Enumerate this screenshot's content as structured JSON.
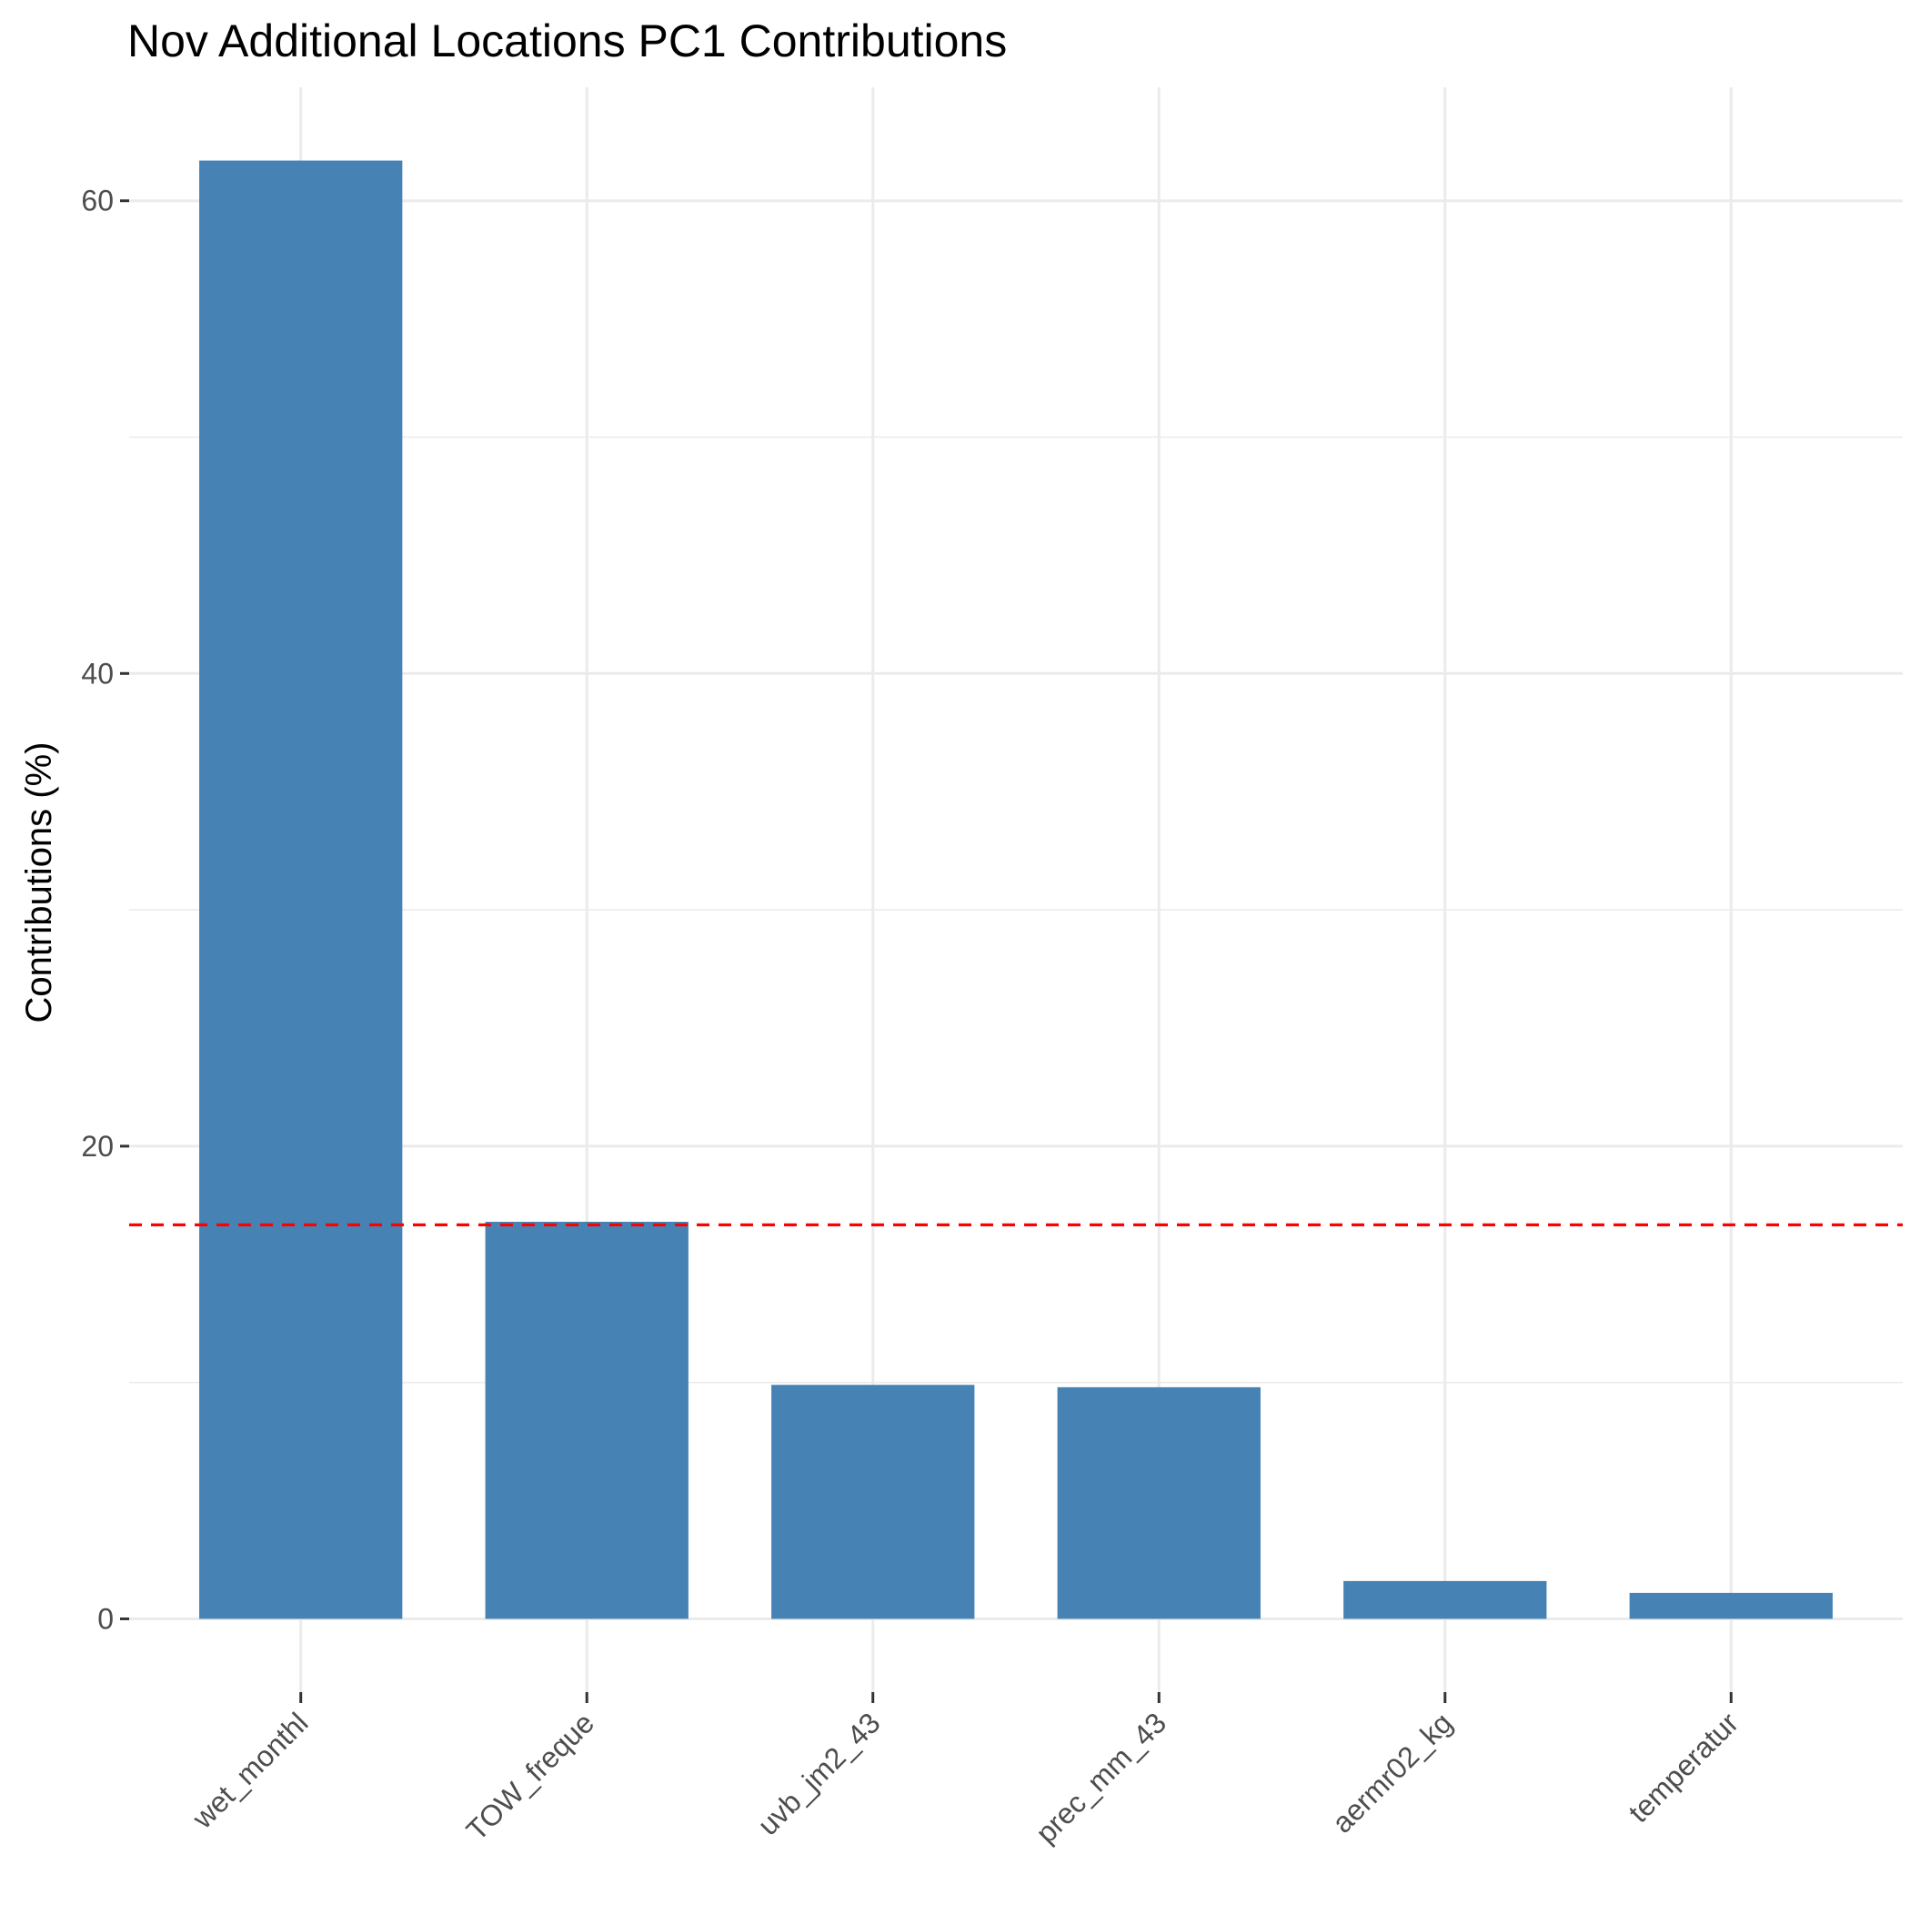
{
  "chart_data": {
    "type": "bar",
    "title": "Nov Additional Locations PC1 Contributions",
    "xlabel": "",
    "ylabel": "Contributions (%)",
    "categories": [
      "wet_monthl",
      "TOW_freque",
      "uvb_jm2_43",
      "prec_mm_43",
      "aermr02_kg",
      "temperatur"
    ],
    "values": [
      61.7,
      16.8,
      9.9,
      9.8,
      1.6,
      1.1
    ],
    "yticks": [
      0,
      20,
      40,
      60
    ],
    "ylim": [
      -3.1,
      64.8
    ],
    "grid": true,
    "reference_line": {
      "value": 16.67,
      "style": "dashed"
    },
    "colors": {
      "bar": "#4682b4",
      "reference_line": "#ff0000",
      "grid": "#ebebeb"
    }
  }
}
